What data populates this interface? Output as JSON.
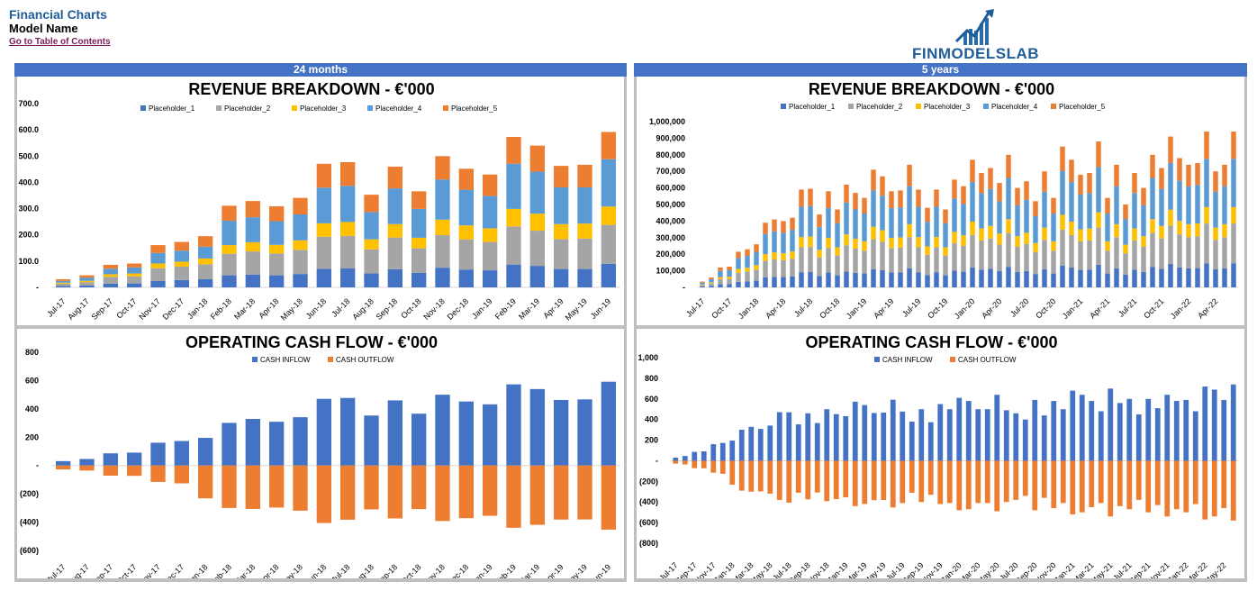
{
  "header": {
    "title": "Financial Charts",
    "model_name": "Model Name",
    "toc_link": "Go to Table of Contents",
    "logo_text": "FINMODELSLAB"
  },
  "sections": {
    "left_label": "24 months",
    "right_label": "5  years"
  },
  "colors": {
    "series1": "#4472c4",
    "series2": "#a5a5a5",
    "series3": "#ffc000",
    "series4": "#5b9bd5",
    "series5": "#ed7d31",
    "inflow": "#4472c4",
    "outflow": "#ed7d31",
    "section_bar": "#4472c4",
    "frame": "#bfbfbf"
  },
  "chart_data": [
    {
      "id": "rev24",
      "type": "bar",
      "stacked": true,
      "title": "REVENUE BREAKDOWN - €'000",
      "legend": [
        "Placeholder_1",
        "Placeholder_2",
        "Placeholder_3",
        "Placeholder_4",
        "Placeholder_5"
      ],
      "ylim": [
        0,
        700
      ],
      "yticks": [
        0,
        100,
        200,
        300,
        400,
        500,
        600,
        700
      ],
      "ytick_labels": [
        "-",
        "100.0",
        "200.0",
        "300.0",
        "400.0",
        "500.0",
        "600.0",
        "700.0"
      ],
      "categories": [
        "Jul-17",
        "Aug-17",
        "Sep-17",
        "Oct-17",
        "Nov-17",
        "Dec-17",
        "Jan-18",
        "Feb-18",
        "Mar-18",
        "Apr-18",
        "May-18",
        "Jun-18",
        "Jul-18",
        "Aug-18",
        "Sep-18",
        "Oct-18",
        "Nov-18",
        "Dec-18",
        "Jan-19",
        "Feb-19",
        "Mar-19",
        "Apr-19",
        "May-19",
        "Jun-19"
      ],
      "series": [
        {
          "name": "Placeholder_1",
          "values": [
            5,
            7,
            14,
            15,
            25,
            28,
            31,
            46,
            49,
            46,
            51,
            71,
            72,
            53,
            69,
            55,
            75,
            68,
            65,
            87,
            82,
            70,
            70,
            90
          ]
        },
        {
          "name": "Placeholder_2",
          "values": [
            9,
            13,
            26,
            27,
            48,
            51,
            57,
            82,
            88,
            83,
            92,
            122,
            124,
            92,
            121,
            94,
            124,
            115,
            108,
            145,
            134,
            114,
            116,
            148
          ]
        },
        {
          "name": "Placeholder_3",
          "values": [
            4,
            5,
            10,
            11,
            18,
            19,
            22,
            33,
            35,
            33,
            36,
            51,
            53,
            38,
            51,
            40,
            59,
            53,
            52,
            67,
            65,
            57,
            57,
            70
          ]
        },
        {
          "name": "Placeholder_4",
          "values": [
            7,
            12,
            21,
            23,
            40,
            42,
            45,
            93,
            95,
            90,
            99,
            136,
            138,
            104,
            136,
            110,
            153,
            136,
            123,
            172,
            160,
            140,
            138,
            180
          ]
        },
        {
          "name": "Placeholder_5",
          "values": [
            6,
            9,
            15,
            15,
            30,
            33,
            40,
            57,
            62,
            57,
            63,
            91,
            90,
            66,
            83,
            67,
            89,
            80,
            82,
            102,
            99,
            82,
            86,
            104
          ]
        }
      ]
    },
    {
      "id": "rev5y",
      "type": "bar",
      "stacked": true,
      "title": "REVENUE BREAKDOWN - €'000",
      "legend": [
        "Placeholder_1",
        "Placeholder_2",
        "Placeholder_3",
        "Placeholder_4",
        "Placeholder_5"
      ],
      "ylim": [
        0,
        1000000
      ],
      "yticks": [
        0,
        100000,
        200000,
        300000,
        400000,
        500000,
        600000,
        700000,
        800000,
        900000,
        1000000
      ],
      "ytick_labels": [
        "-",
        "100,000",
        "200,000",
        "300,000",
        "400,000",
        "500,000",
        "600,000",
        "700,000",
        "800,000",
        "900,000",
        "1,000,000"
      ],
      "categories": [
        "Jul-17",
        "Aug-17",
        "Sep-17",
        "Oct-17",
        "Nov-17",
        "Dec-17",
        "Jan-18",
        "Feb-18",
        "Mar-18",
        "Apr-18",
        "May-18",
        "Jun-18",
        "Jul-18",
        "Aug-18",
        "Sep-18",
        "Oct-18",
        "Nov-18",
        "Dec-18",
        "Jan-19",
        "Feb-19",
        "Mar-19",
        "Apr-19",
        "May-19",
        "Jun-19",
        "Jul-19",
        "Aug-19",
        "Sep-19",
        "Oct-19",
        "Nov-19",
        "Dec-19",
        "Jan-20",
        "Feb-20",
        "Mar-20",
        "Apr-20",
        "May-20",
        "Jun-20",
        "Jul-20",
        "Aug-20",
        "Sep-20",
        "Oct-20",
        "Nov-20",
        "Dec-20",
        "Jan-21",
        "Feb-21",
        "Mar-21",
        "Apr-21",
        "May-21",
        "Jun-21",
        "Jul-21",
        "Aug-21",
        "Sep-21",
        "Oct-21",
        "Nov-21",
        "Dec-21",
        "Jan-22",
        "Feb-22",
        "Mar-22",
        "Apr-22",
        "May-22",
        "Jun-22"
      ],
      "xtick_labels": [
        "Jul-17",
        "Oct-17",
        "Jan-18",
        "Apr-18",
        "Jul-18",
        "Oct-18",
        "Jan-19",
        "Apr-19",
        "Jul-19",
        "Oct-19",
        "Jan-20",
        "Apr-20",
        "Jul-20",
        "Oct-20",
        "Jan-21",
        "Apr-21",
        "Jul-21",
        "Oct-21",
        "Jan-22",
        "Apr-22"
      ],
      "totals": [
        35,
        60,
        120,
        125,
        215,
        230,
        260,
        390,
        410,
        400,
        420,
        590,
        595,
        440,
        580,
        470,
        620,
        570,
        540,
        710,
        670,
        580,
        585,
        740,
        590,
        480,
        590,
        470,
        650,
        610,
        770,
        690,
        720,
        630,
        800,
        600,
        640,
        520,
        700,
        540,
        850,
        770,
        680,
        690,
        880,
        540,
        740,
        500,
        690,
        600,
        800,
        720,
        910,
        780,
        740,
        750,
        940,
        700,
        740,
        940
      ],
      "totals_scale": 1000,
      "series": [
        {
          "name": "Placeholder_1",
          "share": 0.155
        },
        {
          "name": "Placeholder_2",
          "share": 0.255
        },
        {
          "name": "Placeholder_3",
          "share": 0.105
        },
        {
          "name": "Placeholder_4",
          "share": 0.31
        },
        {
          "name": "Placeholder_5",
          "share": 0.175
        }
      ]
    },
    {
      "id": "ocf24",
      "type": "bar",
      "stacked": false,
      "title": "OPERATING CASH FLOW - €'000",
      "legend": [
        "CASH INFLOW",
        "CASH OUTFLOW"
      ],
      "ylim": [
        -600,
        800
      ],
      "yticks": [
        -600,
        -400,
        -200,
        0,
        200,
        400,
        600,
        800
      ],
      "ytick_labels": [
        "(600)",
        "(400)",
        "(200)",
        "-",
        "200",
        "400",
        "600",
        "800"
      ],
      "categories": [
        "Jul-17",
        "Aug-17",
        "Sep-17",
        "Oct-17",
        "Nov-17",
        "Dec-17",
        "Jan-18",
        "Feb-18",
        "Mar-18",
        "Apr-18",
        "May-18",
        "Jun-18",
        "Jul-18",
        "Aug-18",
        "Sep-18",
        "Oct-18",
        "Nov-18",
        "Dec-18",
        "Jan-19",
        "Feb-19",
        "Mar-19",
        "Apr-19",
        "May-19",
        "Jun-19"
      ],
      "series": [
        {
          "name": "CASH INFLOW",
          "values": [
            31,
            46,
            86,
            91,
            161,
            173,
            195,
            301,
            329,
            309,
            341,
            471,
            477,
            353,
            460,
            366,
            500,
            452,
            432,
            573,
            540,
            463,
            467,
            592
          ]
        },
        {
          "name": "CASH OUTFLOW",
          "values": [
            -28,
            -36,
            -72,
            -73,
            -116,
            -126,
            -232,
            -300,
            -307,
            -297,
            -319,
            -406,
            -383,
            -310,
            -374,
            -308,
            -392,
            -372,
            -355,
            -440,
            -419,
            -382,
            -381,
            -453
          ]
        }
      ]
    },
    {
      "id": "ocf5y",
      "type": "bar",
      "stacked": false,
      "title": "OPERATING CASH FLOW - €'000",
      "legend": [
        "CASH INFLOW",
        "CASH OUTFLOW"
      ],
      "ylim": [
        -800,
        1000
      ],
      "yticks": [
        -800,
        -600,
        -400,
        -200,
        0,
        200,
        400,
        600,
        800,
        1000
      ],
      "ytick_labels": [
        "(800)",
        "(600)",
        "(400)",
        "(200)",
        "-",
        "200",
        "400",
        "600",
        "800",
        "1,000"
      ],
      "categories": [
        "Jul-17",
        "Aug-17",
        "Sep-17",
        "Oct-17",
        "Nov-17",
        "Dec-17",
        "Jan-18",
        "Feb-18",
        "Mar-18",
        "Apr-18",
        "May-18",
        "Jun-18",
        "Jul-18",
        "Aug-18",
        "Sep-18",
        "Oct-18",
        "Nov-18",
        "Dec-18",
        "Jan-19",
        "Feb-19",
        "Mar-19",
        "Apr-19",
        "May-19",
        "Jun-19",
        "Jul-19",
        "Aug-19",
        "Sep-19",
        "Oct-19",
        "Nov-19",
        "Dec-19",
        "Jan-20",
        "Feb-20",
        "Mar-20",
        "Apr-20",
        "May-20",
        "Jun-20",
        "Jul-20",
        "Aug-20",
        "Sep-20",
        "Oct-20",
        "Nov-20",
        "Dec-20",
        "Jan-21",
        "Feb-21",
        "Mar-21",
        "Apr-21",
        "May-21",
        "Jun-21",
        "Jul-21",
        "Aug-21",
        "Sep-21",
        "Oct-21",
        "Nov-21",
        "Dec-21",
        "Jan-22",
        "Feb-22",
        "Mar-22",
        "Apr-22",
        "May-22",
        "Jun-22"
      ],
      "xtick_labels": [
        "Jul-17",
        "Sep-17",
        "Nov-17",
        "Jan-18",
        "Mar-18",
        "May-18",
        "Jul-18",
        "Sep-18",
        "Nov-18",
        "Jan-19",
        "Mar-19",
        "May-19",
        "Jul-19",
        "Sep-19",
        "Nov-19",
        "Jan-20",
        "Mar-20",
        "May-20",
        "Jul-20",
        "Sep-20",
        "Nov-20",
        "Jan-21",
        "Mar-21",
        "May-21",
        "Jul-21",
        "Sep-21",
        "Nov-21",
        "Jan-22",
        "Mar-22",
        "May-22"
      ],
      "series": [
        {
          "name": "CASH INFLOW",
          "values": [
            30,
            46,
            86,
            91,
            161,
            173,
            195,
            301,
            329,
            309,
            341,
            471,
            470,
            353,
            460,
            366,
            500,
            452,
            432,
            573,
            540,
            463,
            467,
            592,
            477,
            380,
            500,
            374,
            550,
            500,
            610,
            580,
            500,
            500,
            640,
            490,
            460,
            400,
            590,
            440,
            580,
            500,
            680,
            640,
            580,
            480,
            700,
            560,
            600,
            450,
            600,
            510,
            640,
            580,
            590,
            480,
            720,
            690,
            590,
            740
          ]
        },
        {
          "name": "CASH OUTFLOW",
          "values": [
            -28,
            -36,
            -72,
            -73,
            -116,
            -126,
            -232,
            -290,
            -300,
            -297,
            -319,
            -380,
            -406,
            -310,
            -374,
            -308,
            -392,
            -372,
            -355,
            -440,
            -419,
            -382,
            -381,
            -453,
            -410,
            -310,
            -400,
            -330,
            -420,
            -410,
            -480,
            -470,
            -410,
            -410,
            -490,
            -400,
            -380,
            -340,
            -480,
            -360,
            -460,
            -410,
            -520,
            -500,
            -450,
            -410,
            -540,
            -440,
            -470,
            -380,
            -500,
            -430,
            -540,
            -470,
            -500,
            -420,
            -570,
            -540,
            -460,
            -580
          ]
        }
      ]
    }
  ]
}
